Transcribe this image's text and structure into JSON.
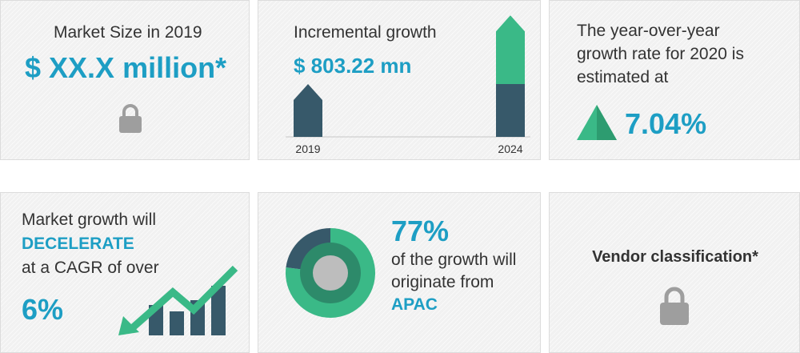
{
  "colors": {
    "accent_blue": "#1d9ec4",
    "navy": "#37596a",
    "green": "#3ab987",
    "teal_dark": "#2d8a6a",
    "lock_gray": "#9e9e9e",
    "text": "#333333"
  },
  "market_size": {
    "label": "Market Size in 2019",
    "value": "$ XX.X million*",
    "icon": "lock-icon"
  },
  "incremental": {
    "label": "Incremental growth",
    "value": "$ 803.22 mn",
    "chart_data": {
      "type": "bar",
      "categories": [
        "2019",
        "2024"
      ],
      "stack": [
        {
          "base": 1,
          "increment": 0
        },
        {
          "base": 1,
          "increment": 1.3
        }
      ]
    }
  },
  "yoy": {
    "line1": "The year-over-year",
    "line2": "growth rate for 2020 is",
    "line3": "estimated at",
    "value": "7.04%",
    "icon": "triangle-up-icon"
  },
  "cagr": {
    "line1": "Market growth will",
    "highlight": "DECELERATE",
    "line3": "at a CAGR of over",
    "value": "6%",
    "icon": "trend-arrow-icon"
  },
  "region": {
    "value": "77%",
    "line1": "of the growth will",
    "line2": "originate from",
    "highlight": "APAC",
    "chart_data": {
      "type": "pie",
      "slices": [
        {
          "label": "APAC",
          "value": 77
        },
        {
          "label": "Other",
          "value": 23
        }
      ]
    }
  },
  "vendor": {
    "label": "Vendor classification*",
    "icon": "lock-icon"
  }
}
